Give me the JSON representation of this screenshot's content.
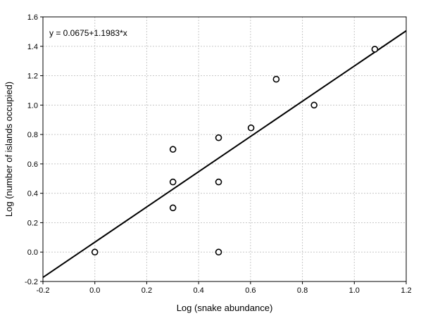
{
  "chart_data": {
    "type": "scatter",
    "title": "",
    "xlabel": "Log (snake abundance)",
    "ylabel": "Log (number of islands occupied)",
    "xlim": [
      -0.2,
      1.2
    ],
    "ylim": [
      -0.2,
      1.6
    ],
    "x_ticks": [
      "-0.2",
      "0.0",
      "0.2",
      "0.4",
      "0.6",
      "0.8",
      "1.0",
      "1.2"
    ],
    "y_ticks": [
      "-0.2",
      "0.0",
      "0.2",
      "0.4",
      "0.6",
      "0.8",
      "1.0",
      "1.2",
      "1.4",
      "1.6"
    ],
    "grid": true,
    "points": [
      {
        "x": 0.0,
        "y": 0.0
      },
      {
        "x": 0.301,
        "y": 0.301
      },
      {
        "x": 0.301,
        "y": 0.477
      },
      {
        "x": 0.301,
        "y": 0.699
      },
      {
        "x": 0.477,
        "y": 0.0
      },
      {
        "x": 0.477,
        "y": 0.477
      },
      {
        "x": 0.477,
        "y": 0.778
      },
      {
        "x": 0.602,
        "y": 0.845
      },
      {
        "x": 0.699,
        "y": 1.176
      },
      {
        "x": 0.845,
        "y": 1.0
      },
      {
        "x": 1.079,
        "y": 1.38
      }
    ],
    "fit_line": {
      "intercept": 0.0675,
      "slope": 1.1983
    },
    "annotation": "y = 0.0675+1.1983*x"
  }
}
